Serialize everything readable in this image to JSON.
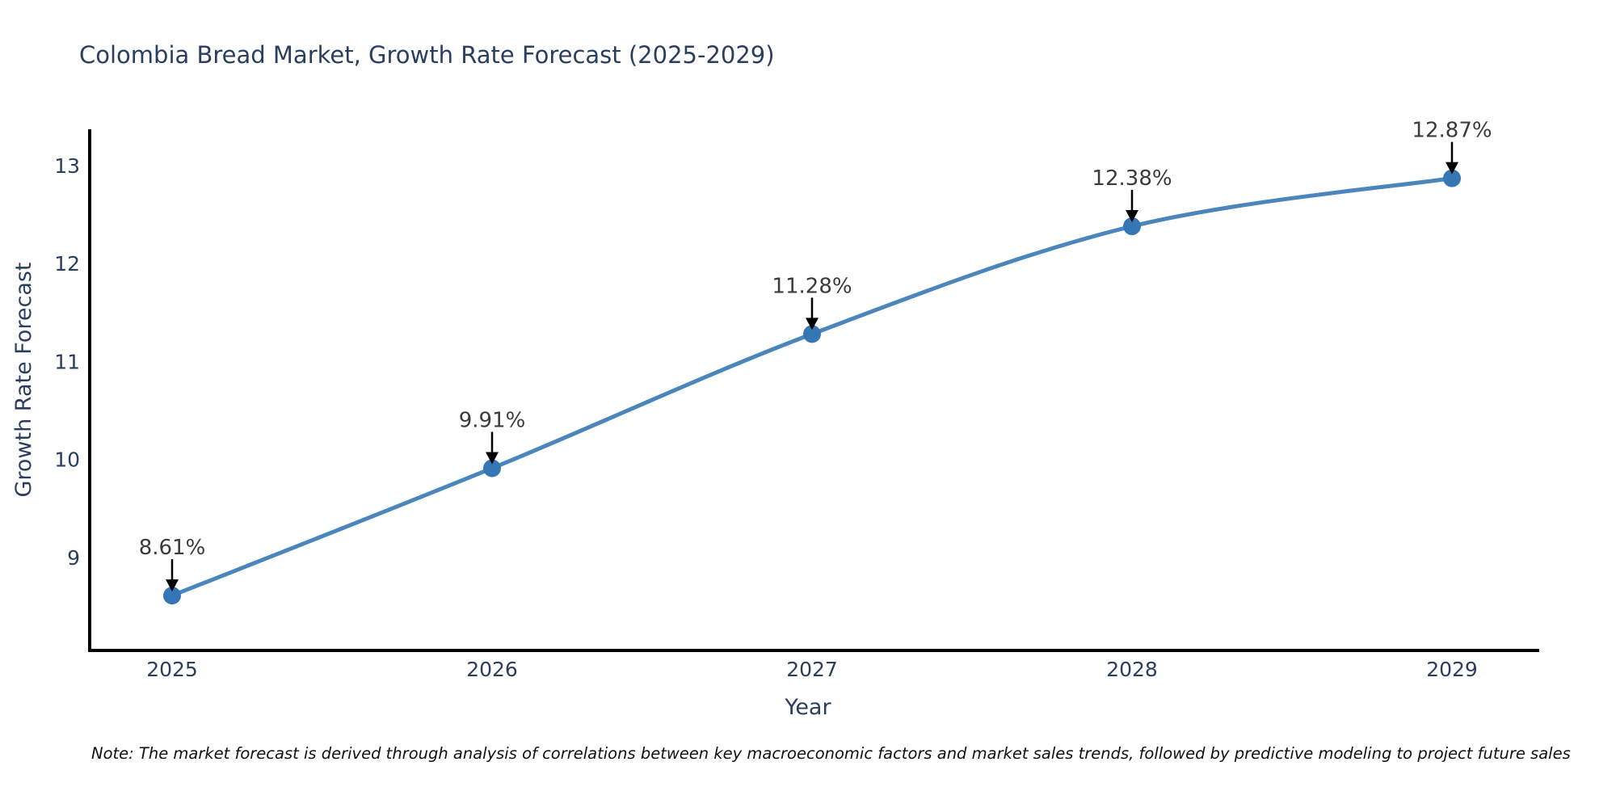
{
  "page": {
    "background": "#ffffff"
  },
  "chart_data": {
    "type": "line",
    "title": "Colombia Bread Market, Growth Rate Forecast (2025-2029)",
    "xlabel": "Year",
    "ylabel": "Growth Rate Forecast",
    "categories": [
      "2025",
      "2026",
      "2027",
      "2028",
      "2029"
    ],
    "series": [
      {
        "name": "Growth Rate Forecast",
        "values": [
          8.61,
          9.91,
          11.28,
          12.38,
          12.87
        ]
      }
    ],
    "point_labels": [
      "8.61%",
      "9.91%",
      "11.28%",
      "12.38%",
      "12.87%"
    ],
    "yticks": [
      9,
      10,
      11,
      12,
      13
    ],
    "ylim": [
      8.05,
      13.37
    ],
    "line_shape": "spline",
    "grid": false,
    "legend": "none",
    "annotation_arrows": "black arrows pointing down from each value label to its data point",
    "colors": {
      "line": "#4a86bb",
      "marker": "#3577b4",
      "axis_spine": "#000000",
      "tick_label": "#2a3f5f",
      "title": "#2a3f5f",
      "annotation_text": "#3b3b3b",
      "arrow": "#000000"
    }
  },
  "note": {
    "text": "Note: The market forecast is derived through analysis of correlations between key macroeconomic factors and market sales trends, followed by predictive modeling to project future sales"
  }
}
